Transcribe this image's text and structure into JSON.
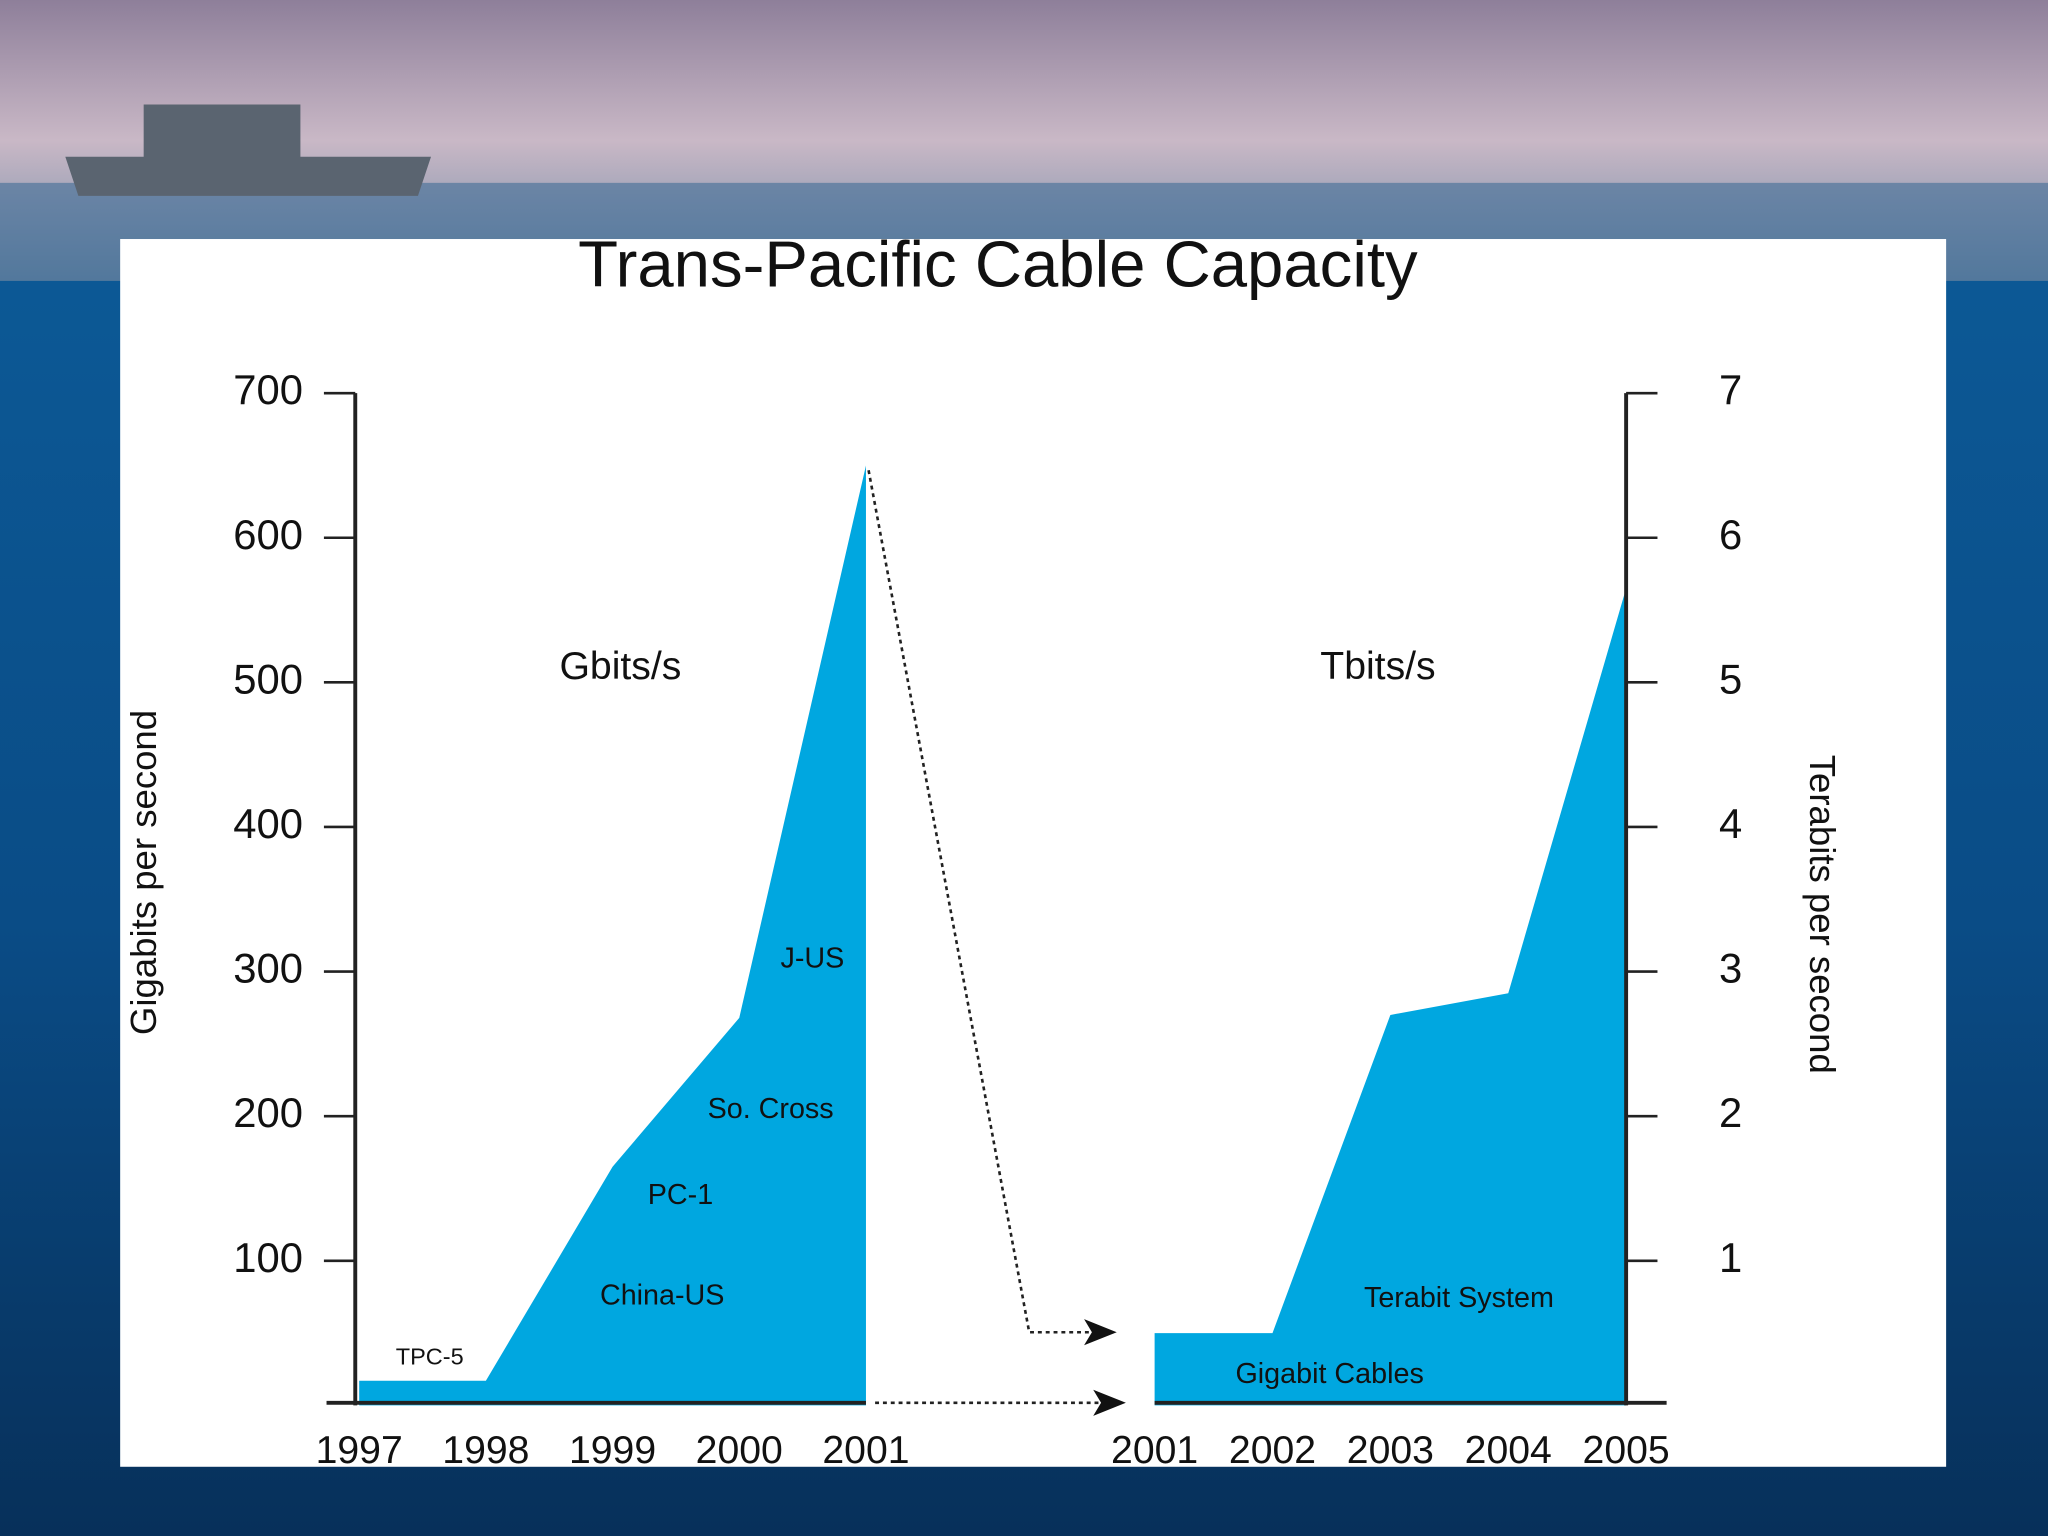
{
  "chart_data": [
    {
      "type": "area",
      "title": "Trans-Pacific Cable Capacity",
      "y_label": "Gigabits per second",
      "categories": [
        "1997",
        "1998",
        "1999",
        "2000",
        "2001"
      ],
      "values": [
        17,
        17,
        165,
        268,
        650
      ],
      "color": "#00a7e0",
      "ylim": [
        0,
        700
      ],
      "yticks": [
        100,
        200,
        300,
        400,
        500,
        600,
        700
      ],
      "annotations": [
        "Gbits/s",
        "J-US",
        "So. Cross",
        "PC-1",
        "China-US",
        "TPC-5"
      ]
    },
    {
      "type": "area",
      "y_label": "Terabits per second",
      "categories": [
        "2001",
        "2002",
        "2003",
        "2004",
        "2005"
      ],
      "values": [
        0.5,
        0.5,
        2.7,
        2.85,
        5.65
      ],
      "color": "#00a7e0",
      "ylim": [
        0,
        7
      ],
      "yticks": [
        1,
        2,
        3,
        4,
        5,
        6,
        7
      ],
      "annotations": [
        "Tbits/s",
        "Terabit System",
        "Gigabit Cables"
      ]
    }
  ]
}
